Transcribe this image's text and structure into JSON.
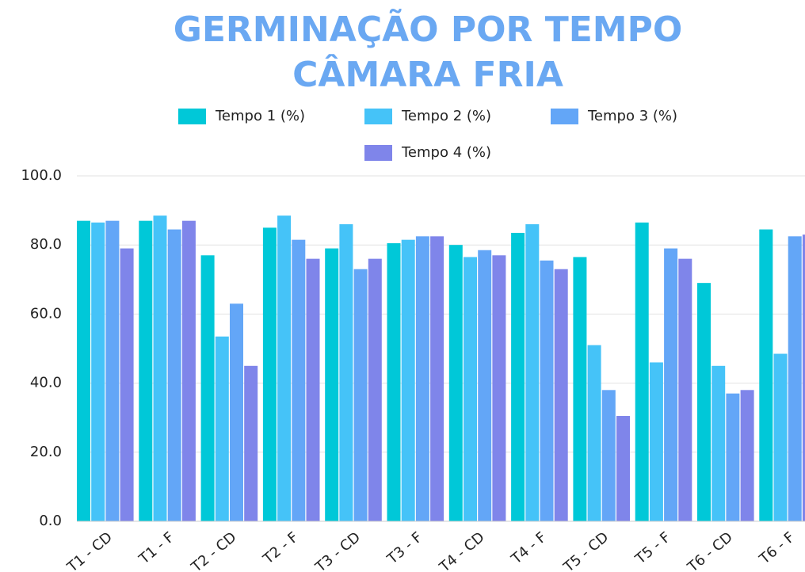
{
  "chart_data": {
    "type": "bar",
    "title": [
      "GERMINAÇÃO POR TEMPO",
      "CÂMARA FRIA"
    ],
    "categories": [
      "T1 - CD",
      "T1 - F",
      "T2 - CD",
      "T2 - F",
      "T3 - CD",
      "T3 - F",
      "T4 - CD",
      "T4 - F",
      "T5 - CD",
      "T5 - F",
      "T6 - CD",
      "T6 - F"
    ],
    "series": [
      {
        "name": "Tempo 1 (%)",
        "color": "#00c8d8",
        "values": [
          87,
          87,
          77,
          85,
          79,
          80.5,
          80,
          83.5,
          76.5,
          86.5,
          69,
          84.5
        ]
      },
      {
        "name": "Tempo 2 (%)",
        "color": "#45c3f8",
        "values": [
          86.5,
          88.5,
          53.5,
          88.5,
          86,
          81.5,
          76.5,
          86,
          51,
          46,
          45,
          48.5
        ]
      },
      {
        "name": "Tempo 3 (%)",
        "color": "#63a6f7",
        "values": [
          87,
          84.5,
          63,
          81.5,
          73,
          82.5,
          78.5,
          75.5,
          38,
          79,
          37,
          82.5
        ]
      },
      {
        "name": "Tempo 4 (%)",
        "color": "#7f85ea",
        "values": [
          79,
          87,
          45,
          76,
          76,
          82.5,
          77,
          73,
          30.5,
          76,
          38,
          83
        ]
      }
    ],
    "ylim": [
      0,
      100
    ],
    "yticks": [
      {
        "value": 0,
        "label": "0.0"
      },
      {
        "value": 20,
        "label": "20.0"
      },
      {
        "value": 40,
        "label": "40.0"
      },
      {
        "value": 60,
        "label": "60.0"
      },
      {
        "value": 80,
        "label": "80.0"
      },
      {
        "value": 100,
        "label": "100.0"
      }
    ],
    "grid": true
  }
}
